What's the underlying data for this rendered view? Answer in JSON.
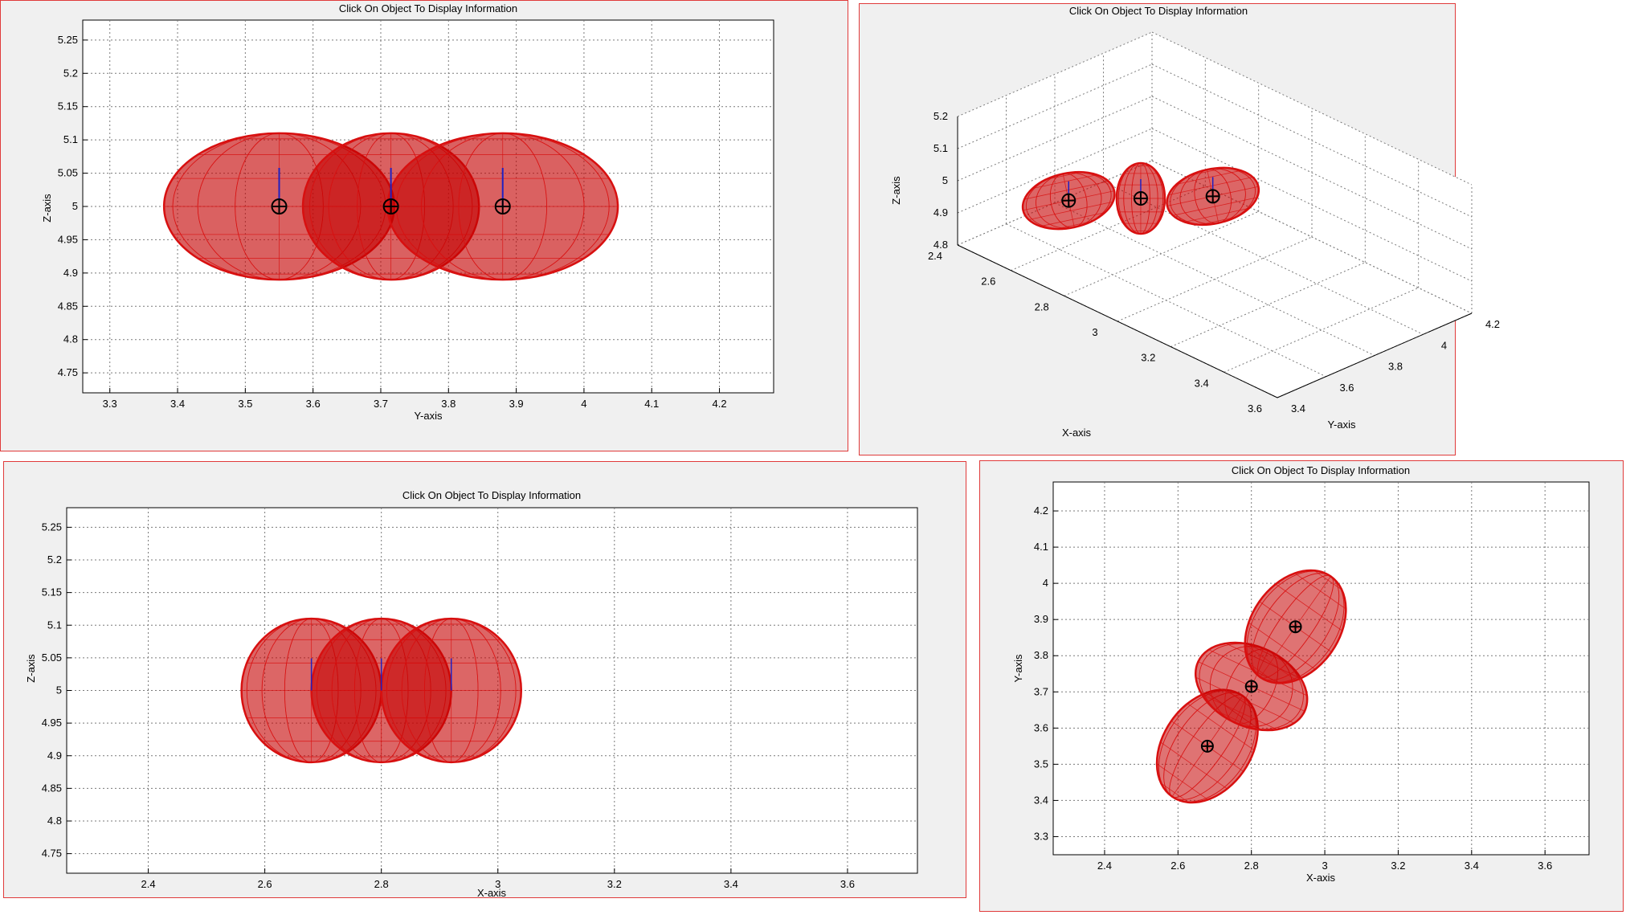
{
  "panels": [
    {
      "title": "Click On Object To Display Information",
      "view": "front",
      "xlabel": "Y-axis",
      "ylabel": "Z-axis",
      "xticks": [
        "3.3",
        "3.4",
        "3.5",
        "3.6",
        "3.7",
        "3.8",
        "3.9",
        "4",
        "4.1",
        "4.2"
      ],
      "yticks": [
        "4.75",
        "4.8",
        "4.85",
        "4.9",
        "4.95",
        "5",
        "5.05",
        "5.1",
        "5.15",
        "5.2",
        "5.25"
      ]
    },
    {
      "title": "Click On Object To Display Information",
      "view": "3d",
      "xlabel": "X-axis",
      "ylabel": "Y-axis",
      "zlabel": "Z-axis",
      "xticks": [
        "2.4",
        "2.6",
        "2.8",
        "3",
        "3.2",
        "3.4",
        "3.6"
      ],
      "yticks": [
        "3.4",
        "3.6",
        "3.8",
        "4",
        "4.2"
      ],
      "zticks": [
        "4.8",
        "4.9",
        "5",
        "5.1",
        "5.2"
      ]
    },
    {
      "title": "Click On Object To Display Information",
      "view": "side",
      "xlabel": "X-axis",
      "ylabel": "Z-axis",
      "xticks": [
        "2.4",
        "2.6",
        "2.8",
        "3",
        "3.2",
        "3.4",
        "3.6"
      ],
      "yticks": [
        "4.75",
        "4.8",
        "4.85",
        "4.9",
        "4.95",
        "5",
        "5.05",
        "5.1",
        "5.15",
        "5.2",
        "5.25"
      ]
    },
    {
      "title": "Click On Object To Display Information",
      "view": "top",
      "xlabel": "X-axis",
      "ylabel": "Y-axis",
      "xticks": [
        "2.4",
        "2.6",
        "2.8",
        "3",
        "3.2",
        "3.4",
        "3.6"
      ],
      "yticks": [
        "3.3",
        "3.4",
        "3.5",
        "3.6",
        "3.7",
        "3.8",
        "3.9",
        "4",
        "4.1",
        "4.2"
      ]
    }
  ],
  "chart_data": [
    {
      "type": "scatter",
      "title": "Click On Object To Display Information",
      "xlabel": "Y-axis",
      "ylabel": "Z-axis",
      "xlim": [
        3.26,
        4.28
      ],
      "ylim": [
        4.72,
        5.28
      ],
      "grid": true,
      "series": [
        {
          "x": [
            3.55,
            3.715,
            3.88
          ],
          "y": [
            5,
            5,
            5
          ]
        }
      ]
    },
    {
      "type": "scatter",
      "title": "Click On Object To Display Information",
      "xlabel": "X-axis",
      "ylabel": "Y-axis",
      "zlabel": "Z-axis",
      "xlim": [
        2.4,
        3.6
      ],
      "ylim": [
        3.4,
        4.2
      ],
      "zlim": [
        4.8,
        5.2
      ],
      "grid": true,
      "series": [
        {
          "x": [
            2.68,
            2.8,
            2.92
          ],
          "y": [
            3.55,
            3.715,
            3.88
          ],
          "z": [
            5,
            5,
            5
          ]
        }
      ]
    },
    {
      "type": "scatter",
      "title": "Click On Object To Display Information",
      "xlabel": "X-axis",
      "ylabel": "Z-axis",
      "xlim": [
        2.26,
        3.72
      ],
      "ylim": [
        4.72,
        5.28
      ],
      "grid": true,
      "series": [
        {
          "x": [
            2.68,
            2.8,
            2.92
          ],
          "y": [
            5,
            5,
            5
          ]
        }
      ]
    },
    {
      "type": "scatter",
      "title": "Click On Object To Display Information",
      "xlabel": "X-axis",
      "ylabel": "Y-axis",
      "xlim": [
        2.26,
        3.72
      ],
      "ylim": [
        3.25,
        4.28
      ],
      "grid": true,
      "series": [
        {
          "x": [
            2.68,
            2.8,
            2.92
          ],
          "y": [
            3.55,
            3.715,
            3.88
          ]
        }
      ]
    }
  ],
  "colors": {
    "ellipsoid": "#d81010",
    "ellipsoid_fill": "#c40000",
    "grid": "#7a7a7a",
    "marker": "#000000",
    "stem": "#2020c0"
  }
}
